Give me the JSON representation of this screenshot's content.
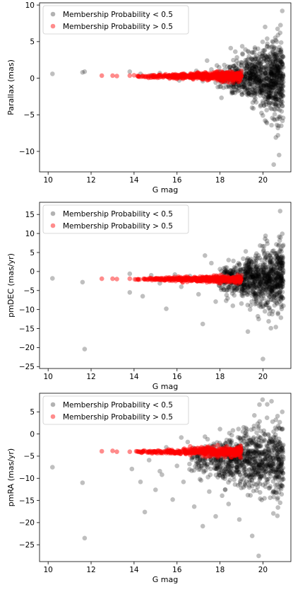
{
  "colors": {
    "non_member": "#000000",
    "member": "#ff0000"
  },
  "chart_data": [
    {
      "type": "scatter",
      "xlabel": "G mag",
      "ylabel": "Parallax (mas)",
      "xlim": [
        9.6,
        21.3
      ],
      "ylim": [
        -12.8,
        10.3
      ],
      "xticks": [
        10,
        12,
        14,
        16,
        18,
        20
      ],
      "yticks": [
        -10,
        -5,
        0,
        5,
        10
      ],
      "legend": {
        "placement": "top-left",
        "entries": [
          "Membership Probability < 0.5",
          "Membership Probability > 0.5"
        ]
      },
      "series": [
        {
          "name": "Membership Probability < 0.5",
          "color": "#000000",
          "alpha": 0.25,
          "points": [
            [
              10.2,
              0.6
            ],
            [
              11.6,
              0.8
            ],
            [
              11.7,
              0.9
            ],
            [
              13.8,
              0.9
            ],
            [
              14.3,
              0.6
            ],
            [
              14.8,
              0.4
            ],
            [
              15.2,
              0.7
            ],
            [
              15.6,
              0.3
            ],
            [
              16.1,
              -0.3
            ],
            [
              16.4,
              0.5
            ],
            [
              16.9,
              1.0
            ],
            [
              17.2,
              -0.4
            ],
            [
              17.4,
              2.4
            ],
            [
              17.6,
              1.2
            ],
            [
              17.8,
              -0.6
            ],
            [
              18.0,
              0.9
            ],
            [
              18.2,
              1.8
            ],
            [
              18.3,
              -1.2
            ],
            [
              18.5,
              4.1
            ],
            [
              18.7,
              -2.0
            ],
            [
              18.9,
              1.4
            ],
            [
              19.1,
              -0.8
            ],
            [
              19.2,
              2.2
            ],
            [
              19.3,
              3.7
            ],
            [
              19.4,
              -1.6
            ],
            [
              19.5,
              0.5
            ],
            [
              19.6,
              -2.5
            ],
            [
              19.7,
              3.1
            ],
            [
              19.8,
              -0.2
            ],
            [
              19.9,
              1.9
            ],
            [
              20.0,
              -3.4
            ],
            [
              20.05,
              2.6
            ],
            [
              20.1,
              7.0
            ],
            [
              20.1,
              -5.8
            ],
            [
              20.2,
              4.3
            ],
            [
              20.3,
              -1.1
            ],
            [
              20.35,
              0.8
            ],
            [
              20.4,
              -4.2
            ],
            [
              20.45,
              3.6
            ],
            [
              20.5,
              -2.7
            ],
            [
              20.55,
              1.7
            ],
            [
              20.6,
              5.2
            ],
            [
              20.65,
              -6.4
            ],
            [
              20.7,
              -7.8
            ],
            [
              20.72,
              2.9
            ],
            [
              20.75,
              -10.5
            ],
            [
              20.8,
              6.2
            ],
            [
              20.85,
              -3.5
            ],
            [
              20.9,
              9.2
            ],
            [
              20.95,
              0.3
            ],
            [
              20.5,
              -11.8
            ],
            [
              20.7,
              -6.8
            ],
            [
              20.6,
              -8.1
            ]
          ],
          "dense_band": {
            "x_range": [
              17.8,
              20.95
            ],
            "y_center": 0.0,
            "spread_start": 0.6,
            "spread_end": 2.6,
            "count": 900
          }
        },
        {
          "name": "Membership Probability > 0.5",
          "color": "#ff0000",
          "alpha": 0.45,
          "points": [
            [
              12.5,
              0.35
            ],
            [
              13.0,
              0.35
            ],
            [
              13.2,
              0.3
            ],
            [
              13.8,
              0.35
            ],
            [
              14.0,
              0.4
            ],
            [
              14.2,
              0.3
            ]
          ],
          "dense_band": {
            "x_range": [
              14.0,
              19.0
            ],
            "y_center": 0.25,
            "spread_start": 0.05,
            "spread_end": 0.35,
            "count": 500
          }
        }
      ]
    },
    {
      "type": "scatter",
      "xlabel": "G mag",
      "ylabel": "pmDEC (mas/yr)",
      "xlim": [
        9.6,
        21.3
      ],
      "ylim": [
        -25.5,
        18.2
      ],
      "xticks": [
        10,
        12,
        14,
        16,
        18,
        20
      ],
      "yticks": [
        -25,
        -20,
        -15,
        -10,
        -5,
        0,
        5,
        10,
        15
      ],
      "legend": {
        "placement": "top-left",
        "entries": [
          "Membership Probability < 0.5",
          "Membership Probability > 0.5"
        ]
      },
      "series": [
        {
          "name": "Membership Probability < 0.5",
          "color": "#000000",
          "alpha": 0.25,
          "points": [
            [
              10.2,
              -1.8
            ],
            [
              11.6,
              -2.8
            ],
            [
              11.7,
              -20.4
            ],
            [
              13.8,
              -5.5
            ],
            [
              13.8,
              -0.6
            ],
            [
              14.4,
              -6.5
            ],
            [
              14.8,
              -1.0
            ],
            [
              15.2,
              -3.1
            ],
            [
              15.5,
              -9.8
            ],
            [
              15.9,
              -0.8
            ],
            [
              16.2,
              -4.0
            ],
            [
              16.6,
              -1.2
            ],
            [
              17.0,
              -6.0
            ],
            [
              17.2,
              -13.8
            ],
            [
              17.3,
              4.2
            ],
            [
              17.6,
              2.2
            ],
            [
              17.8,
              -7.9
            ],
            [
              18.0,
              0.6
            ],
            [
              18.2,
              -4.8
            ],
            [
              18.4,
              3.0
            ],
            [
              18.6,
              -9.0
            ],
            [
              18.8,
              1.6
            ],
            [
              19.0,
              -5.2
            ],
            [
              19.2,
              5.3
            ],
            [
              19.4,
              -10.0
            ],
            [
              19.6,
              -7.3
            ],
            [
              19.8,
              -12.5
            ],
            [
              20.0,
              -23.0
            ],
            [
              20.1,
              8.6
            ],
            [
              20.2,
              -4.0
            ],
            [
              20.3,
              -9.5
            ],
            [
              20.4,
              2.6
            ],
            [
              20.5,
              -7.6
            ],
            [
              20.6,
              -14.6
            ],
            [
              20.7,
              -11.2
            ],
            [
              20.8,
              15.9
            ],
            [
              20.85,
              6.0
            ],
            [
              20.9,
              9.9
            ],
            [
              20.95,
              -9.0
            ],
            [
              19.3,
              -15.8
            ]
          ],
          "dense_band": {
            "x_range": [
              17.8,
              20.95
            ],
            "y_center": -2.0,
            "spread_start": 1.2,
            "spread_end": 4.5,
            "count": 900
          }
        },
        {
          "name": "Membership Probability > 0.5",
          "color": "#ff0000",
          "alpha": 0.45,
          "points": [
            [
              12.5,
              -1.9
            ],
            [
              13.0,
              -1.9
            ],
            [
              13.2,
              -2.0
            ],
            [
              13.8,
              -1.9
            ],
            [
              14.1,
              -2.1
            ]
          ],
          "dense_band": {
            "x_range": [
              14.0,
              19.0
            ],
            "y_center": -2.0,
            "spread_start": 0.1,
            "spread_end": 0.45,
            "count": 500
          }
        }
      ]
    },
    {
      "type": "scatter",
      "xlabel": "G mag",
      "ylabel": "pmRA (mas/yr)",
      "xlim": [
        9.6,
        21.3
      ],
      "ylim": [
        -28.8,
        9.2
      ],
      "xticks": [
        10,
        12,
        14,
        16,
        18,
        20
      ],
      "yticks": [
        -25,
        -20,
        -15,
        -10,
        -5,
        0,
        5
      ],
      "legend": {
        "placement": "top-left",
        "entries": [
          "Membership Probability < 0.5",
          "Membership Probability > 0.5"
        ]
      },
      "series": [
        {
          "name": "Membership Probability < 0.5",
          "color": "#000000",
          "alpha": 0.25,
          "points": [
            [
              10.2,
              -7.5
            ],
            [
              11.6,
              -11.0
            ],
            [
              11.7,
              -23.5
            ],
            [
              13.9,
              -7.9
            ],
            [
              14.3,
              -10.8
            ],
            [
              14.5,
              -17.6
            ],
            [
              14.7,
              -5.9
            ],
            [
              15.0,
              -12.6
            ],
            [
              15.3,
              -9.2
            ],
            [
              15.5,
              -3.0
            ],
            [
              15.8,
              -14.8
            ],
            [
              16.0,
              -7.2
            ],
            [
              16.3,
              -10.8
            ],
            [
              16.5,
              -1.8
            ],
            [
              16.8,
              -16.4
            ],
            [
              17.0,
              -6.9
            ],
            [
              17.2,
              -20.8
            ],
            [
              17.3,
              -0.6
            ],
            [
              17.5,
              -13.0
            ],
            [
              17.8,
              -18.6
            ],
            [
              18.0,
              1.1
            ],
            [
              18.2,
              -8.4
            ],
            [
              18.4,
              -15.8
            ],
            [
              18.5,
              -3.4
            ],
            [
              18.7,
              -11.4
            ],
            [
              18.9,
              -19.3
            ],
            [
              19.1,
              1.5
            ],
            [
              19.3,
              -13.8
            ],
            [
              19.5,
              -23.0
            ],
            [
              19.6,
              4.2
            ],
            [
              19.8,
              -27.5
            ],
            [
              20.0,
              -11.5
            ],
            [
              20.2,
              6.7
            ],
            [
              20.4,
              7.4
            ],
            [
              20.5,
              -14.2
            ],
            [
              20.6,
              3.2
            ],
            [
              20.7,
              -16.6
            ],
            [
              20.8,
              -7.5
            ],
            [
              20.9,
              5.0
            ],
            [
              20.95,
              -10.2
            ],
            [
              16.2,
              -0.8
            ],
            [
              17.7,
              -2.2
            ],
            [
              15.2,
              -8.4
            ]
          ],
          "dense_band": {
            "x_range": [
              16.5,
              20.95
            ],
            "y_center": -6.0,
            "spread_start": 1.6,
            "spread_end": 4.2,
            "count": 900
          }
        },
        {
          "name": "Membership Probability > 0.5",
          "color": "#ff0000",
          "alpha": 0.45,
          "points": [
            [
              12.5,
              -3.9
            ],
            [
              13.0,
              -3.8
            ],
            [
              13.2,
              -4.0
            ],
            [
              13.8,
              -4.0
            ],
            [
              14.1,
              -3.9
            ]
          ],
          "dense_band": {
            "x_range": [
              14.0,
              19.0
            ],
            "y_center": -4.0,
            "spread_start": 0.1,
            "spread_end": 0.6,
            "count": 500
          }
        }
      ]
    }
  ]
}
